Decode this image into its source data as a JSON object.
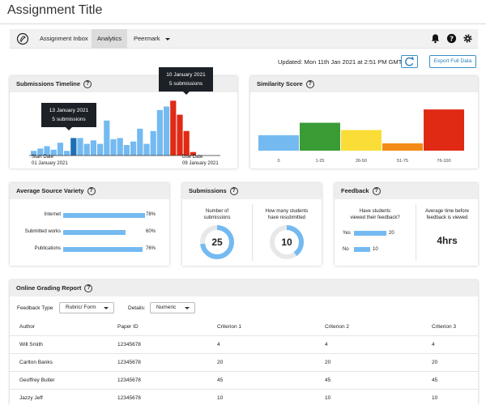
{
  "page": {
    "title": "Assignment Title"
  },
  "nav": {
    "tabs": [
      "Assignment Inbox",
      "Analytics",
      "Peermark"
    ],
    "active_tab": "Analytics"
  },
  "toolbar": {
    "updated": "Updated: Mon 11th Jan 2021 at 2:51 PM GMT",
    "export_label": "Export Full Data"
  },
  "timeline": {
    "title": "Submissions Timeline",
    "tip1": {
      "date": "13 January 2021",
      "count": "5 submissions"
    },
    "tip2": {
      "date": "10 January 2021",
      "count": "5 submissions"
    },
    "start_label": "Start Date",
    "start_date": "01 January 2021",
    "due_label": "Due Date",
    "due_date": "09 January 2021"
  },
  "similarity": {
    "title": "Similarity Score",
    "bars": [
      {
        "label": "0",
        "value": 0.36,
        "color": "#74baf1"
      },
      {
        "label": "1-25",
        "value": 0.65,
        "color": "#3a9c35"
      },
      {
        "label": "26-50",
        "value": 0.48,
        "color": "#fadd37"
      },
      {
        "label": "51-75",
        "value": 0.17,
        "color": "#f28c16"
      },
      {
        "label": "76-100",
        "value": 0.96,
        "color": "#e02a14"
      }
    ]
  },
  "variety": {
    "title": "Average Source Variety",
    "rows": [
      {
        "label": "Internet",
        "pct": "78%",
        "value": 0.78
      },
      {
        "label": "Submitted works",
        "pct": "60%",
        "value": 0.6
      },
      {
        "label": "Publications",
        "pct": "76%",
        "value": 0.76
      }
    ]
  },
  "submissions": {
    "title": "Submissions",
    "count_label_1": "Number of",
    "count_label_2": "submissions",
    "count": "25",
    "count_fraction": 0.73,
    "resub_label_1": "How many students",
    "resub_label_2": "have resubmitted",
    "resub": "10",
    "resub_fraction": 0.4
  },
  "feedback": {
    "title": "Feedback",
    "viewed_q_1": "Have students",
    "viewed_q_2": "viewed their feedback?",
    "yes_label": "Yes",
    "yes_value": "20",
    "no_label": "No",
    "no_value": "10",
    "avg_label_1": "Average time before",
    "avg_label_2": "feedback is viewed",
    "avg_value": "4hrs"
  },
  "grading": {
    "title": "Online Grading Report",
    "feedback_type_label": "Feedback Type",
    "feedback_type_value": "Rubric/ Form",
    "details_label": "Details:",
    "details_value": "Numeric",
    "columns": [
      "Author",
      "Paper ID",
      "Criterion 1",
      "Criterion 2",
      "Criterion 3"
    ],
    "rows": [
      [
        "Will Smith",
        "12345678",
        "4",
        "4",
        "4"
      ],
      [
        "Carlton Banks",
        "12345678",
        "20",
        "20",
        "20"
      ],
      [
        "Geoffrey Butler",
        "12345678",
        "45",
        "45",
        "45"
      ],
      [
        "Jazzy Jeff",
        "12345678",
        "10",
        "10",
        "10"
      ]
    ]
  },
  "colors": {
    "accent": "#3a8fc4",
    "bar_blue": "#74baf1",
    "bar_dark_blue": "#1f6fb4",
    "bar_red": "#e02a14"
  },
  "timeline_bars": [
    {
      "value": 0.08,
      "color": "#74baf1"
    },
    {
      "value": 0.12,
      "color": "#74baf1"
    },
    {
      "value": 0.16,
      "color": "#74baf1"
    },
    {
      "value": 0.1,
      "color": "#74baf1"
    },
    {
      "value": 0.22,
      "color": "#74baf1"
    },
    {
      "value": 0.08,
      "color": "#74baf1"
    },
    {
      "value": 0.3,
      "color": "#1f6fb4"
    },
    {
      "value": 0.3,
      "color": "#74baf1"
    },
    {
      "value": 0.2,
      "color": "#74baf1"
    },
    {
      "value": 0.26,
      "color": "#74baf1"
    },
    {
      "value": 0.2,
      "color": "#74baf1"
    },
    {
      "value": 0.6,
      "color": "#74baf1"
    },
    {
      "value": 0.28,
      "color": "#74baf1"
    },
    {
      "value": 0.3,
      "color": "#74baf1"
    },
    {
      "value": 0.18,
      "color": "#74baf1"
    },
    {
      "value": 0.24,
      "color": "#74baf1"
    },
    {
      "value": 0.46,
      "color": "#74baf1"
    },
    {
      "value": 0.2,
      "color": "#74baf1"
    },
    {
      "value": 0.42,
      "color": "#74baf1"
    },
    {
      "value": 0.78,
      "color": "#74baf1"
    },
    {
      "value": 0.84,
      "color": "#74baf1"
    },
    {
      "value": 0.94,
      "color": "#e02a14"
    },
    {
      "value": 0.7,
      "color": "#e02a14"
    },
    {
      "value": 0.42,
      "color": "#e02a14"
    },
    {
      "value": 0.06,
      "color": "#e02a14"
    }
  ]
}
